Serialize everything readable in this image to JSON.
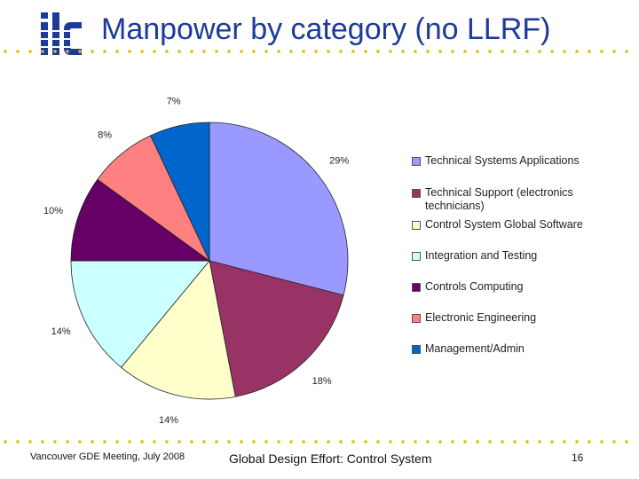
{
  "header": {
    "title": "Manpower by category (no LLRF)",
    "logo_text": "ilc",
    "logo_color": "#1c3a99"
  },
  "accent_color": "#1c3a99",
  "dot_color": "#d9c200",
  "chart_data": {
    "type": "pie",
    "title": "",
    "categories": [
      "Technical Systems Applications",
      "Technical Support (electronics technicians)",
      "Control System Global Software",
      "Integration and Testing",
      "Controls Computing",
      "Electronic Engineering",
      "Management/Admin"
    ],
    "values": [
      29,
      18,
      14,
      14,
      10,
      8,
      7
    ],
    "value_labels": [
      "29%",
      "18%",
      "14%",
      "14%",
      "10%",
      "8%",
      "7%"
    ],
    "colors": [
      "#9999ff",
      "#993366",
      "#ffffcc",
      "#ccffff",
      "#660066",
      "#ff8080",
      "#0066cc"
    ],
    "legend_placement": "right"
  },
  "footer": {
    "left": "Vancouver GDE Meeting, July 2008",
    "center": "Global Design Effort: Control System",
    "page_number": "16"
  }
}
